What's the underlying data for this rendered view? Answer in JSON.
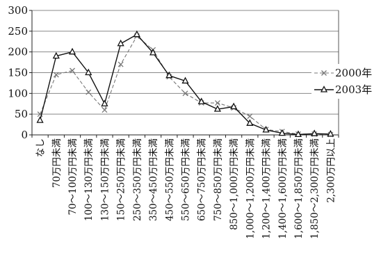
{
  "chart_data": {
    "type": "line",
    "title": "",
    "xlabel": "",
    "ylabel": "",
    "ylim": [
      0,
      300
    ],
    "yticks": [
      0,
      50,
      100,
      150,
      200,
      250,
      300
    ],
    "grid": true,
    "legend_position": "right",
    "categories": [
      "なし",
      "70万円未満",
      "70～100万円未満",
      "100～130万円未満",
      "130～150万円未満",
      "150～250万円未満",
      "250～350万円未満",
      "350～450万円未満",
      "450～550万円未満",
      "550～650万円未満",
      "650～750万円未満",
      "750～850万円未満",
      "850～1,000万円未満",
      "1,000～1,200万円未満",
      "1,200～1,400万円未満",
      "1,400～1,600万円未満",
      "1,600～1,850万円未満",
      "1,850～2,300万円未満",
      "2,300万円以上"
    ],
    "series": [
      {
        "name": "2000年",
        "marker": "x",
        "line": "dashed",
        "color": "#777777",
        "values": [
          50,
          145,
          155,
          103,
          60,
          170,
          238,
          205,
          140,
          100,
          77,
          77,
          65,
          45,
          13,
          8,
          2,
          2,
          1
        ]
      },
      {
        "name": "2003年",
        "marker": "triangle",
        "line": "solid",
        "color": "#111111",
        "values": [
          35,
          190,
          200,
          150,
          75,
          220,
          242,
          198,
          143,
          130,
          80,
          62,
          68,
          28,
          12,
          4,
          1,
          3,
          2
        ]
      }
    ]
  }
}
